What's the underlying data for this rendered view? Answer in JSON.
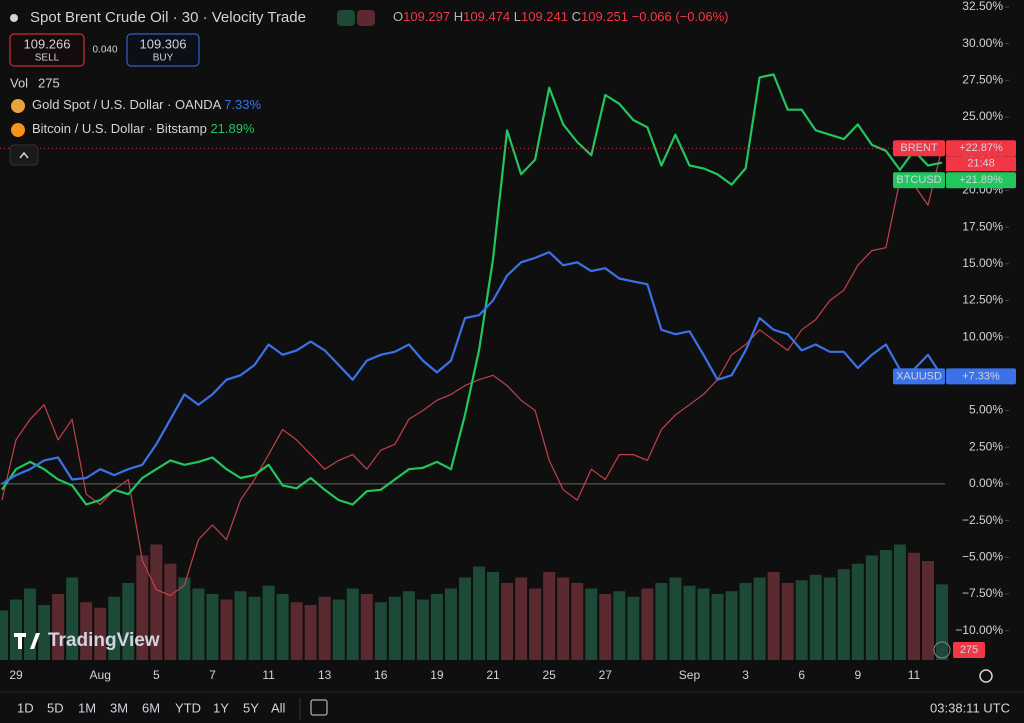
{
  "header": {
    "title": "Spot Brent Crude Oil · 30 · Velocity Trade",
    "ohlc": [
      {
        "key": "O",
        "value": "109.297"
      },
      {
        "key": "H",
        "value": "109.474"
      },
      {
        "key": "L",
        "value": "109.241"
      },
      {
        "key": "C",
        "value": "109.251"
      }
    ],
    "change": "−0.066 (−0.06%)"
  },
  "trade": {
    "sell_price": "109.266",
    "sell": "SELL",
    "spread": "0.040",
    "buy_price": "109.306",
    "buy": "BUY"
  },
  "volume_label": "Vol",
  "legend": [
    {
      "name": "Gold Spot / U.S. Dollar · OANDA",
      "value": "7.33%"
    },
    {
      "name": "Bitcoin / U.S. Dollar · Bitstamp",
      "value": "21.89%"
    }
  ],
  "logo": "TradingView",
  "toolbar": {
    "ranges": [
      "1D",
      "5D",
      "1M",
      "3M",
      "6M",
      "YTD",
      "1Y",
      "5Y",
      "All"
    ],
    "clock": "03:38:11 UTC"
  },
  "chart_data": {
    "type": "line",
    "categories": [
      null,
      "29",
      null,
      null,
      null,
      null,
      null,
      "Aug",
      null,
      null,
      null,
      "5",
      null,
      null,
      null,
      "7",
      null,
      null,
      null,
      "11",
      null,
      null,
      null,
      "13",
      null,
      null,
      null,
      "16",
      null,
      null,
      null,
      "19",
      null,
      null,
      null,
      "21",
      null,
      null,
      null,
      "25",
      null,
      null,
      null,
      "27",
      null,
      null,
      null,
      null,
      null,
      "Sep",
      null,
      null,
      null,
      "3",
      null,
      null,
      null,
      "6",
      null,
      null,
      null,
      "9",
      null,
      null,
      null,
      "11",
      null,
      null
    ],
    "series": [
      {
        "name": "BRENT",
        "color": "#c4404a",
        "badge": "+22.87%",
        "badge_time": "21:48",
        "values": [
          -1.1,
          3.0,
          4.4,
          5.4,
          3.0,
          4.4,
          -0.7,
          -1.4,
          -0.4,
          0.3,
          -5.2,
          -7.2,
          -7.6,
          -6.9,
          -3.8,
          -2.8,
          -3.8,
          -1.1,
          0.3,
          2.0,
          3.7,
          3.0,
          2.0,
          1.0,
          1.6,
          2.0,
          1.0,
          2.3,
          2.7,
          4.4,
          5.0,
          5.7,
          6.1,
          6.7,
          7.1,
          7.4,
          6.7,
          5.7,
          5.0,
          1.6,
          -0.4,
          -1.1,
          1.0,
          0.3,
          2.0,
          2.0,
          1.6,
          3.7,
          4.7,
          5.4,
          6.1,
          7.1,
          8.8,
          9.5,
          10.5,
          9.8,
          9.1,
          10.5,
          11.2,
          12.5,
          13.2,
          14.9,
          15.9,
          16.1,
          20.7,
          20.4,
          19.0,
          22.87
        ]
      },
      {
        "name": "BTCUSD",
        "color": "#22c55e",
        "badge": "+21.89%",
        "values": [
          -0.4,
          1.0,
          1.5,
          1.0,
          0.3,
          -0.1,
          -1.4,
          -1.1,
          -0.4,
          -0.7,
          0.4,
          1.0,
          1.6,
          1.3,
          1.5,
          1.8,
          1.0,
          0.4,
          0.6,
          1.3,
          -0.1,
          -0.3,
          0.4,
          -0.4,
          -1.1,
          -1.4,
          -0.5,
          -0.4,
          0.3,
          1.0,
          1.1,
          1.5,
          1.0,
          4.7,
          9.1,
          15.3,
          24.1,
          21.1,
          22.1,
          27.0,
          24.5,
          23.3,
          22.4,
          26.5,
          25.9,
          24.8,
          24.3,
          21.7,
          23.8,
          21.7,
          21.5,
          21.1,
          20.4,
          21.5,
          27.7,
          27.9,
          25.5,
          25.5,
          24.1,
          23.8,
          23.5,
          24.5,
          23.1,
          22.7,
          21.4,
          22.7,
          21.7,
          21.89
        ]
      },
      {
        "name": "XAUUSD",
        "color": "#3b72e8",
        "badge": "+7.33%",
        "values": [
          0,
          0.6,
          1.0,
          1.6,
          1.8,
          0.3,
          0.4,
          1.0,
          0.6,
          1.0,
          1.3,
          2.7,
          4.4,
          6.1,
          5.4,
          6.1,
          7.1,
          7.4,
          8.1,
          9.5,
          8.8,
          9.1,
          9.7,
          9.1,
          8.1,
          7.1,
          8.4,
          8.8,
          9.0,
          9.5,
          8.4,
          7.6,
          8.4,
          11.3,
          11.5,
          12.5,
          14.2,
          15.1,
          15.4,
          15.8,
          14.9,
          15.1,
          14.5,
          14.7,
          14.0,
          13.8,
          13.6,
          10.5,
          10.2,
          10.4,
          8.8,
          7.1,
          7.4,
          9.1,
          11.3,
          10.5,
          10.2,
          9.1,
          9.5,
          9.0,
          9.0,
          7.9,
          8.8,
          9.5,
          7.8,
          7.8,
          8.8,
          7.33
        ]
      }
    ],
    "volume": {
      "colors": [
        "#5b2a30",
        "#1d4a37"
      ],
      "vlim": [
        0,
        800
      ],
      "values": [
        180,
        220,
        260,
        200,
        240,
        300,
        210,
        190,
        230,
        280,
        380,
        420,
        350,
        300,
        260,
        240,
        220,
        250,
        230,
        270,
        240,
        210,
        200,
        230,
        220,
        260,
        240,
        210,
        230,
        250,
        220,
        240,
        260,
        300,
        340,
        320,
        280,
        300,
        260,
        320,
        300,
        280,
        260,
        240,
        250,
        230,
        260,
        280,
        300,
        270,
        260,
        240,
        250,
        280,
        300,
        320,
        280,
        290,
        310,
        300,
        330,
        350,
        380,
        400,
        420,
        390,
        360,
        275
      ]
    },
    "ylim": [
      -12,
      32.5
    ],
    "yticks": [
      {
        "value": 32.5,
        "label": "32.50%"
      },
      {
        "value": 30,
        "label": "30.00%"
      },
      {
        "value": 27.5,
        "label": "27.50%"
      },
      {
        "value": 25,
        "label": "25.00%"
      },
      {
        "value": 22.5,
        "label": "22.50%"
      },
      {
        "value": 20,
        "label": "20.00%"
      },
      {
        "value": 17.5,
        "label": "17.50%"
      },
      {
        "value": 15,
        "label": "15.00%"
      },
      {
        "value": 12.5,
        "label": "12.50%"
      },
      {
        "value": 10,
        "label": "10.00%"
      },
      {
        "value": 7.5,
        "label": "7.50%"
      },
      {
        "value": 5,
        "label": "5.00%"
      },
      {
        "value": 2.5,
        "label": "2.50%"
      },
      {
        "value": 0,
        "label": "0.00%"
      },
      {
        "value": -2.5,
        "label": "−2.50%"
      },
      {
        "value": -5,
        "label": "−5.00%"
      },
      {
        "value": -7.5,
        "label": "−7.50%"
      },
      {
        "value": -10,
        "label": "−10.00%"
      }
    ],
    "zero_line": true,
    "grid": false
  }
}
